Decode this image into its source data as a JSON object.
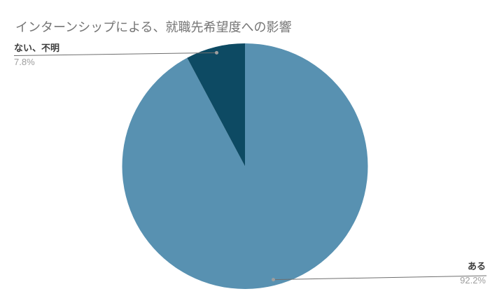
{
  "chart_data": {
    "type": "pie",
    "title": "インターンシップによる、就職先希望度への影響",
    "labels": [
      "ある",
      "ない、不明"
    ],
    "values": [
      92.2,
      7.8
    ],
    "display_values": [
      "92.2%",
      "7.8%"
    ],
    "slice_colors": [
      "#5891b1",
      "#0d4a63"
    ],
    "start_angle_deg": 0,
    "direction": "clockwise",
    "legend_style": "labeled-callouts",
    "background": "#ffffff"
  },
  "colors": {
    "title_text": "#757575",
    "label_text": "#3c3c3c",
    "percent_text": "#9e9e9e",
    "leader_line": "#6e6e6e",
    "leader_dot": "#9e9e9e"
  }
}
